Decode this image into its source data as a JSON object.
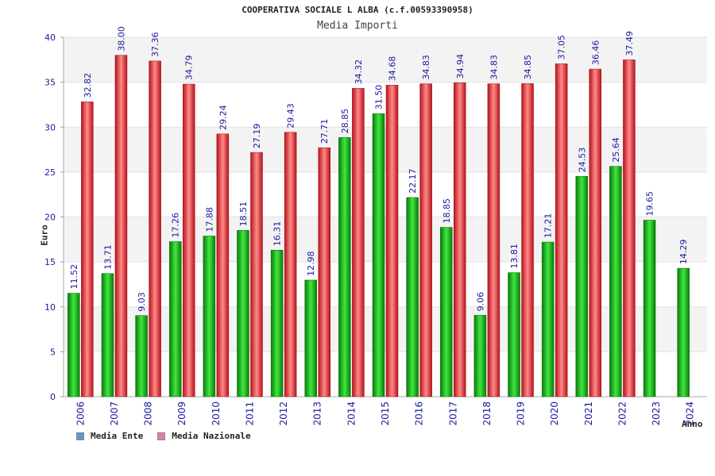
{
  "chart_data": {
    "type": "bar",
    "title": "COOPERATIVA SOCIALE L ALBA (c.f.00593390958)",
    "subtitle": "Media Importi",
    "xlabel": "Anno",
    "ylabel": "Euro",
    "ylim": [
      0,
      40
    ],
    "yticks": [
      0,
      5,
      10,
      15,
      20,
      25,
      30,
      35,
      40
    ],
    "grid": true,
    "legend_position": "bottom-left",
    "categories": [
      "2006",
      "2007",
      "2008",
      "2009",
      "2010",
      "2011",
      "2012",
      "2013",
      "2014",
      "2015",
      "2016",
      "2017",
      "2018",
      "2019",
      "2020",
      "2021",
      "2022",
      "2023",
      "2024"
    ],
    "series": [
      {
        "name": "Media Ente",
        "legend_color": "#5b9bd5",
        "color": "#13b013",
        "values": [
          11.52,
          13.71,
          9.03,
          17.26,
          17.88,
          18.51,
          16.31,
          12.98,
          28.85,
          31.5,
          22.17,
          18.85,
          9.06,
          13.81,
          17.21,
          24.53,
          25.64,
          19.65,
          14.29
        ],
        "labels": [
          "11.52",
          "13.71",
          "9.03",
          "17.26",
          "17.88",
          "18.51",
          "16.31",
          "12.98",
          "28.85",
          "31.50",
          "22.17",
          "18.85",
          "9.06",
          "13.81",
          "17.21",
          "24.53",
          "25.64",
          "19.65",
          "14.29"
        ]
      },
      {
        "name": "Media Nazionale",
        "legend_color": "#e07cb0",
        "color": "#e8202a",
        "values": [
          32.82,
          38.0,
          37.36,
          34.79,
          29.24,
          27.19,
          29.43,
          27.71,
          34.32,
          34.68,
          34.83,
          34.94,
          34.83,
          34.85,
          37.05,
          36.46,
          37.49,
          null,
          null
        ],
        "labels": [
          "32.82",
          "38.00",
          "37.36",
          "34.79",
          "29.24",
          "27.19",
          "29.43",
          "27.71",
          "34.32",
          "34.68",
          "34.83",
          "34.94",
          "34.83",
          "34.85",
          "37.05",
          "36.46",
          "37.49",
          "",
          ""
        ]
      }
    ]
  }
}
